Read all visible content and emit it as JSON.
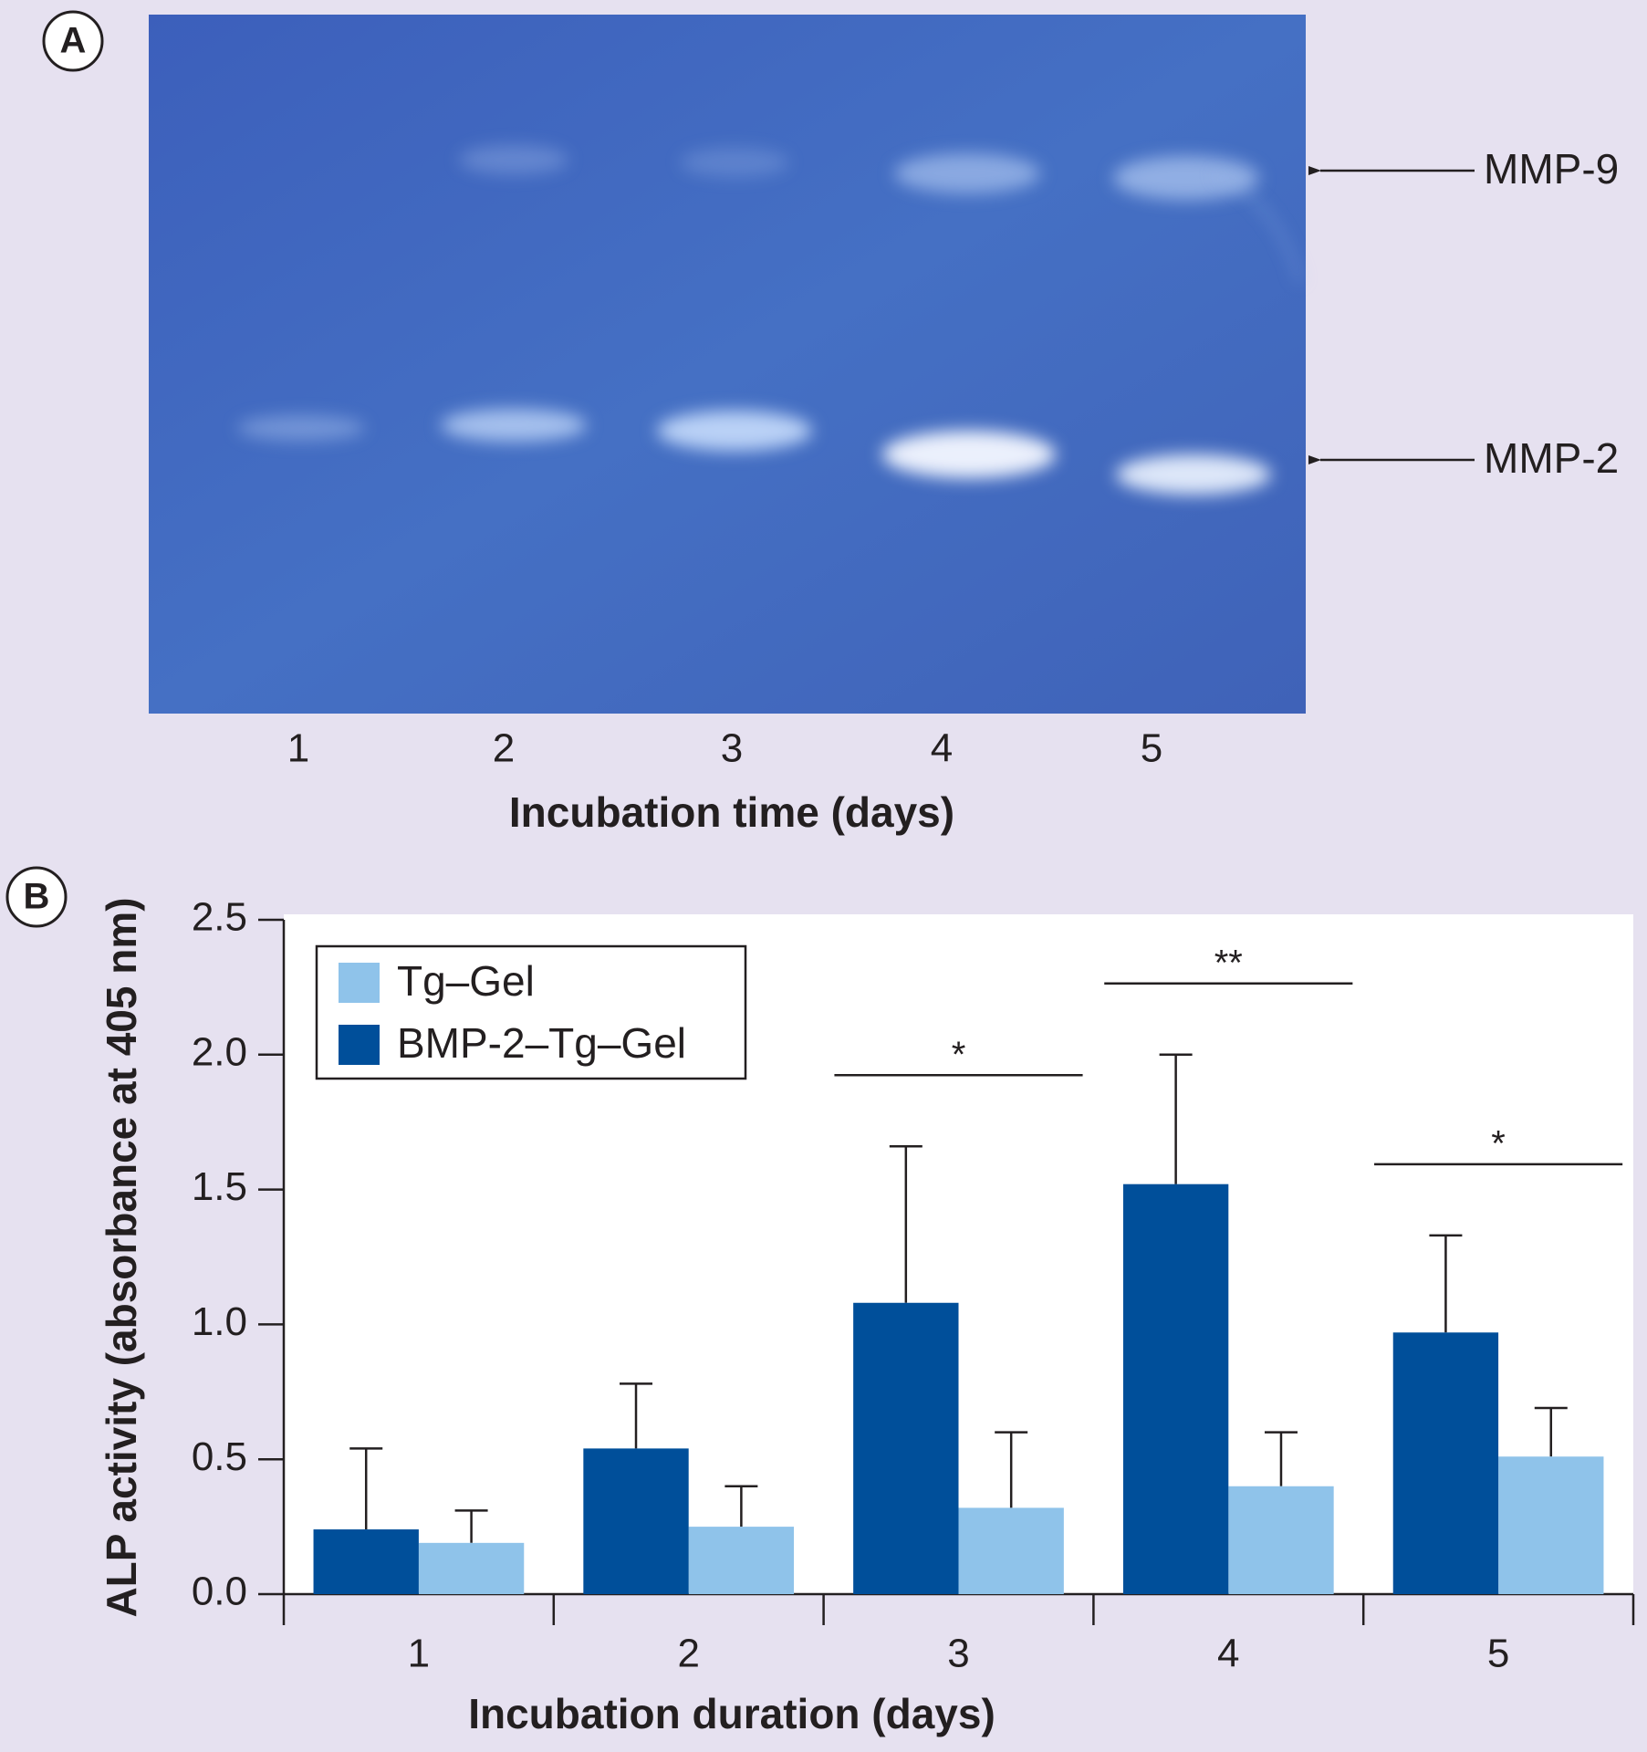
{
  "gel": {
    "panel_label": "A",
    "lanes": [
      "1",
      "2",
      "3",
      "4",
      "5"
    ],
    "xlabel": "Incubation time (days)",
    "bands": [
      "MMP-9",
      "MMP-2"
    ]
  },
  "chart_data": {
    "type": "bar",
    "panel_label": "B",
    "xlabel": "Incubation duration (days)",
    "ylabel": "ALP activity (absorbance at 405 nm)",
    "categories": [
      "1",
      "2",
      "3",
      "4",
      "5"
    ],
    "series": [
      {
        "name": "Tg–Gel",
        "color": "#8fc3ea",
        "values": [
          0.19,
          0.25,
          0.32,
          0.4,
          0.51
        ],
        "errors": [
          0.12,
          0.15,
          0.28,
          0.2,
          0.18
        ]
      },
      {
        "name": "BMP-2–Tg–Gel",
        "color": "#004f9a",
        "values": [
          0.24,
          0.54,
          1.08,
          1.52,
          0.97
        ],
        "errors": [
          0.3,
          0.24,
          0.58,
          0.48,
          0.36
        ]
      }
    ],
    "ylim": [
      0,
      2.5
    ],
    "yticks": [
      {
        "value": 0,
        "label": "0.0"
      },
      0.5,
      {
        "value": 1,
        "label": "1.0"
      },
      1.5,
      {
        "value": 2,
        "label": "2.0"
      },
      2.5
    ],
    "annotations": [
      {
        "category": "3",
        "text": "*"
      },
      {
        "category": "4",
        "text": "**"
      },
      {
        "category": "5",
        "text": "*"
      }
    ],
    "legend": "upper left",
    "grid": false
  }
}
